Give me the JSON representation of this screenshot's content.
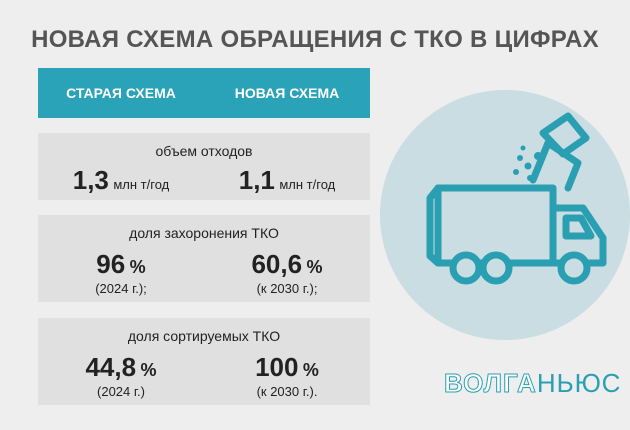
{
  "header": {
    "title": "НОВАЯ СХЕМА ОБРАЩЕНИЯ С ТКО В ЦИФРАХ"
  },
  "columns": [
    "СТАРАЯ СХЕМА",
    "НОВАЯ СХЕМА"
  ],
  "rows": [
    {
      "label": "объем отходов",
      "cells": [
        {
          "value": "1,3",
          "unit": "млн т/год"
        },
        {
          "value": "1,1",
          "unit": "млн т/год"
        }
      ]
    },
    {
      "label": "доля захоронения ТКО",
      "cells": [
        {
          "value": "96",
          "unit": "%",
          "note": "(2024 г.);"
        },
        {
          "value": "60,6",
          "unit": "%",
          "note": "(к 2030 г.);"
        }
      ]
    },
    {
      "label": "доля сортируемых ТКО",
      "cells": [
        {
          "value": "44,8",
          "unit": "%",
          "note": "(2024 г.)"
        },
        {
          "value": "100",
          "unit": "%",
          "note": "(к 2030 г.)."
        }
      ]
    }
  ],
  "logo": {
    "part1": "ВОЛГА",
    "part2": "НЬЮС"
  }
}
